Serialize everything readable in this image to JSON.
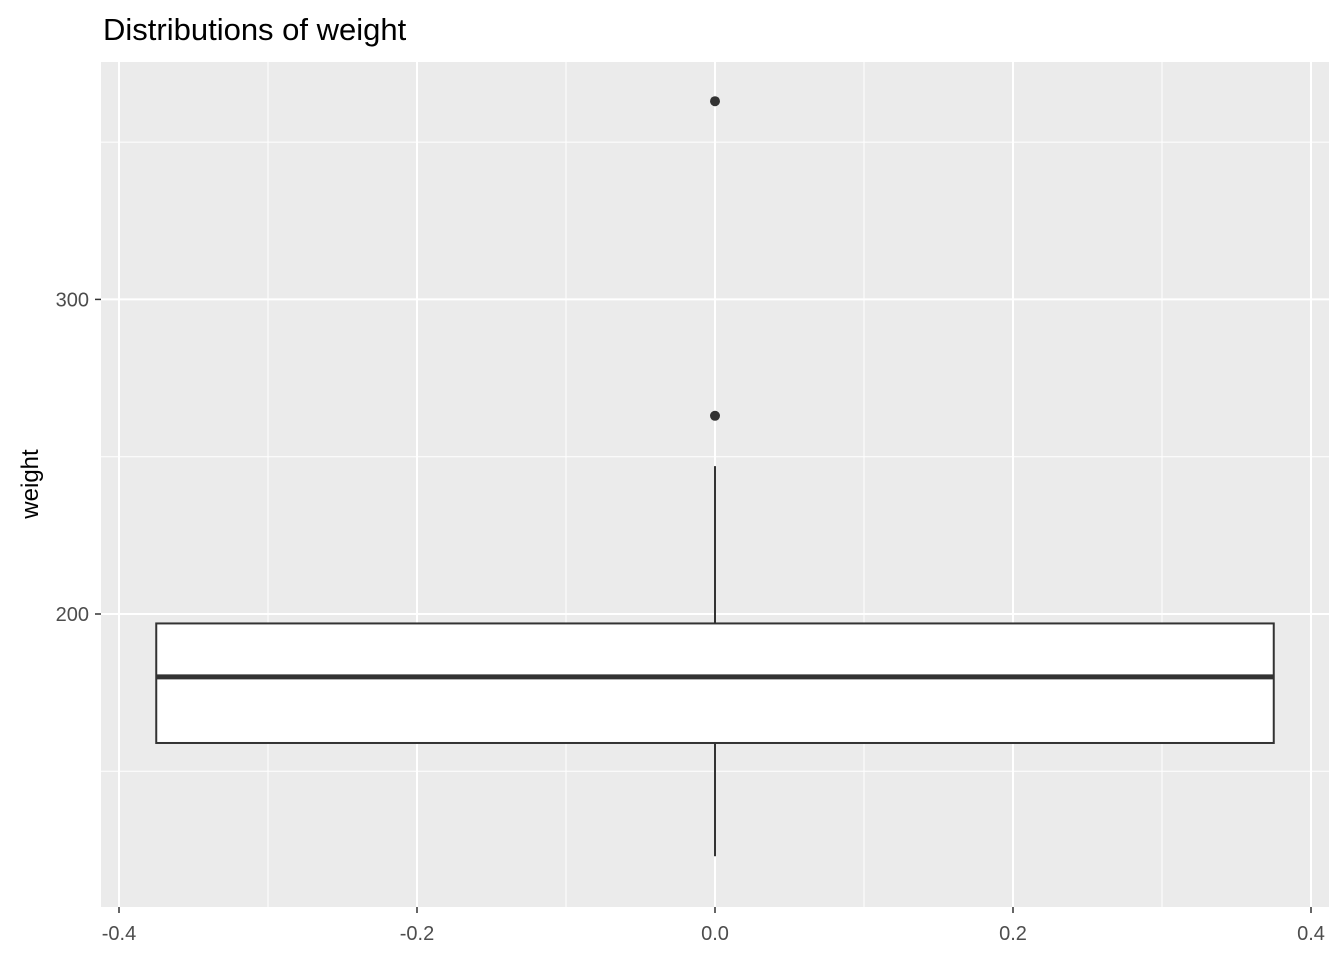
{
  "chart_data": {
    "type": "box",
    "title": "Distributions of weight",
    "xlabel": "",
    "ylabel": "weight",
    "xlim": [
      -0.4,
      0.4
    ],
    "ylim": [
      120,
      370
    ],
    "x_ticks": [
      "-0.4",
      "-0.2",
      "0.0",
      "0.2",
      "0.4"
    ],
    "y_ticks": [
      "200",
      "300"
    ],
    "grid": true,
    "box": {
      "x": 0,
      "width": 0.75,
      "lower_whisker": 123,
      "q1": 159,
      "median": 180,
      "q3": 197,
      "upper_whisker": 247,
      "outliers": [
        263,
        363
      ]
    },
    "colors": {
      "panel_background": "#ebebeb",
      "grid": "#ffffff",
      "box_fill": "#ffffff",
      "box_line": "#333333",
      "outlier": "#333333",
      "tick_text": "#4d4d4d",
      "title_text": "#000000"
    }
  }
}
